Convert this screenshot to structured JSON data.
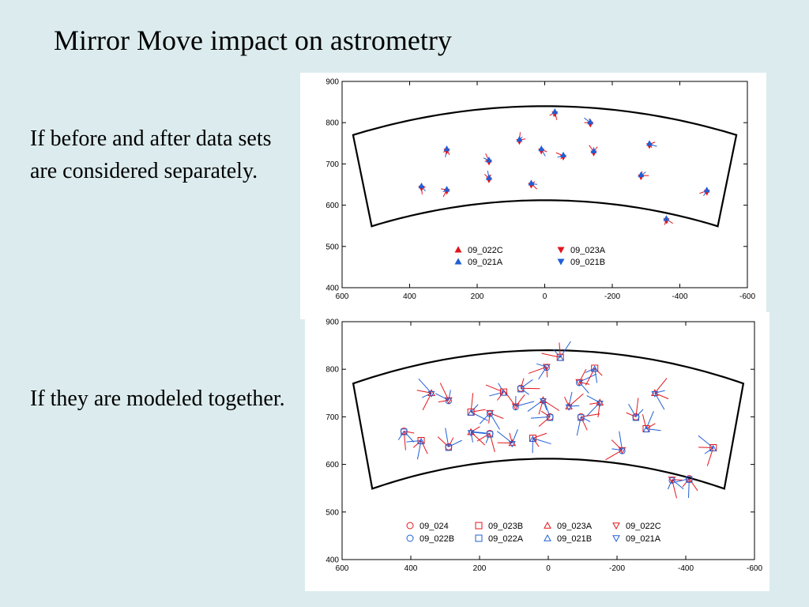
{
  "slide": {
    "title": "Mirror Move impact on astrometry",
    "caption_top": "If before and after data sets are considered separately.",
    "caption_bottom": "If they are modeled together."
  },
  "colors": {
    "red": "#e3141b",
    "blue": "#1f5fd6"
  },
  "chart_data": [
    {
      "type": "scatter",
      "title": "",
      "xlabel": "",
      "ylabel": "",
      "xlim": [
        600,
        -600
      ],
      "ylim": [
        400,
        900
      ],
      "x_ticks": [
        600,
        400,
        200,
        0,
        -200,
        -400,
        -600
      ],
      "y_ticks": [
        400,
        500,
        600,
        700,
        800,
        900
      ],
      "grid": false,
      "legend": [
        {
          "label": "09_022C",
          "color": "red",
          "marker": "triangle-up"
        },
        {
          "label": "09_023A",
          "color": "red",
          "marker": "triangle-down"
        },
        {
          "label": "09_021A",
          "color": "blue",
          "marker": "triangle-up"
        },
        {
          "label": "09_021B",
          "color": "blue",
          "marker": "triangle-down"
        }
      ],
      "points": [
        {
          "x": 365,
          "y": 645
        },
        {
          "x": 290,
          "y": 735
        },
        {
          "x": 290,
          "y": 637
        },
        {
          "x": 165,
          "y": 708
        },
        {
          "x": 165,
          "y": 665
        },
        {
          "x": 75,
          "y": 758
        },
        {
          "x": 40,
          "y": 652
        },
        {
          "x": 10,
          "y": 735
        },
        {
          "x": -30,
          "y": 825
        },
        {
          "x": -55,
          "y": 720
        },
        {
          "x": -135,
          "y": 800
        },
        {
          "x": -145,
          "y": 730
        },
        {
          "x": -285,
          "y": 672
        },
        {
          "x": -310,
          "y": 748
        },
        {
          "x": -360,
          "y": 566
        },
        {
          "x": -480,
          "y": 635
        }
      ]
    },
    {
      "type": "scatter",
      "title": "",
      "xlabel": "",
      "ylabel": "",
      "xlim": [
        600,
        -600
      ],
      "ylim": [
        400,
        900
      ],
      "x_ticks": [
        600,
        400,
        200,
        0,
        -200,
        -400,
        -600
      ],
      "y_ticks": [
        400,
        500,
        600,
        700,
        800,
        900
      ],
      "grid": false,
      "legend": [
        {
          "label": "09_024",
          "color": "red",
          "marker": "circle"
        },
        {
          "label": "09_023B",
          "color": "red",
          "marker": "square"
        },
        {
          "label": "09_023A",
          "color": "red",
          "marker": "triangle-up"
        },
        {
          "label": "09_022C",
          "color": "red",
          "marker": "triangle-down"
        },
        {
          "label": "09_022B",
          "color": "blue",
          "marker": "circle"
        },
        {
          "label": "09_022A",
          "color": "blue",
          "marker": "square"
        },
        {
          "label": "09_021B",
          "color": "blue",
          "marker": "triangle-up"
        },
        {
          "label": "09_021A",
          "color": "blue",
          "marker": "triangle-down"
        }
      ],
      "points": [
        {
          "x": 420,
          "y": 670
        },
        {
          "x": 370,
          "y": 650
        },
        {
          "x": 340,
          "y": 750
        },
        {
          "x": 290,
          "y": 735
        },
        {
          "x": 290,
          "y": 637
        },
        {
          "x": 225,
          "y": 710
        },
        {
          "x": 225,
          "y": 668
        },
        {
          "x": 170,
          "y": 708
        },
        {
          "x": 170,
          "y": 665
        },
        {
          "x": 130,
          "y": 752
        },
        {
          "x": 105,
          "y": 645
        },
        {
          "x": 95,
          "y": 722
        },
        {
          "x": 80,
          "y": 760
        },
        {
          "x": 45,
          "y": 655
        },
        {
          "x": 15,
          "y": 735
        },
        {
          "x": 5,
          "y": 805
        },
        {
          "x": -5,
          "y": 700
        },
        {
          "x": -35,
          "y": 825
        },
        {
          "x": -60,
          "y": 722
        },
        {
          "x": -90,
          "y": 773
        },
        {
          "x": -95,
          "y": 700
        },
        {
          "x": -135,
          "y": 802
        },
        {
          "x": -150,
          "y": 730
        },
        {
          "x": -215,
          "y": 630
        },
        {
          "x": -255,
          "y": 700
        },
        {
          "x": -285,
          "y": 675
        },
        {
          "x": -310,
          "y": 750
        },
        {
          "x": -360,
          "y": 568
        },
        {
          "x": -410,
          "y": 570
        },
        {
          "x": -480,
          "y": 635
        }
      ]
    }
  ]
}
